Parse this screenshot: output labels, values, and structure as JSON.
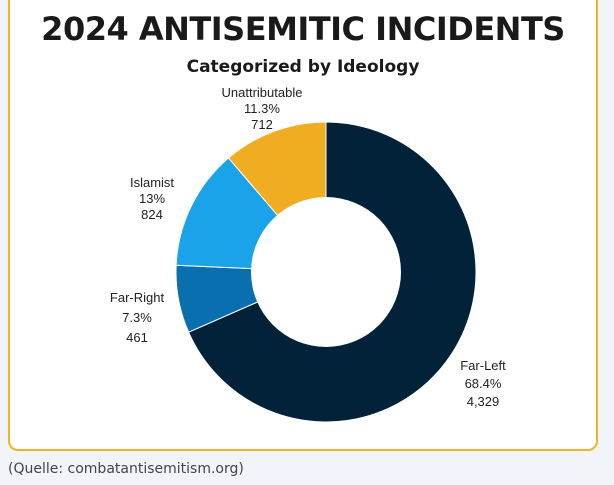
{
  "chart_data": {
    "type": "pie",
    "title": "2024 ANTISEMITIC INCIDENTS",
    "subtitle": "Categorized by Ideology",
    "categories": [
      "Far-Left",
      "Far-Right",
      "Islamist",
      "Unattributable"
    ],
    "values": [
      4329,
      461,
      824,
      712
    ],
    "percent_labels": [
      "68.4%",
      "7.3%",
      "13%",
      "11.3%"
    ],
    "count_labels": [
      "4,329",
      "461",
      "824",
      "712"
    ],
    "colors": [
      "#022239",
      "#0a6fae",
      "#1aa3e8",
      "#f0ad22"
    ],
    "donut": true
  },
  "source": "(Quelle: combatantisemitism.org)"
}
